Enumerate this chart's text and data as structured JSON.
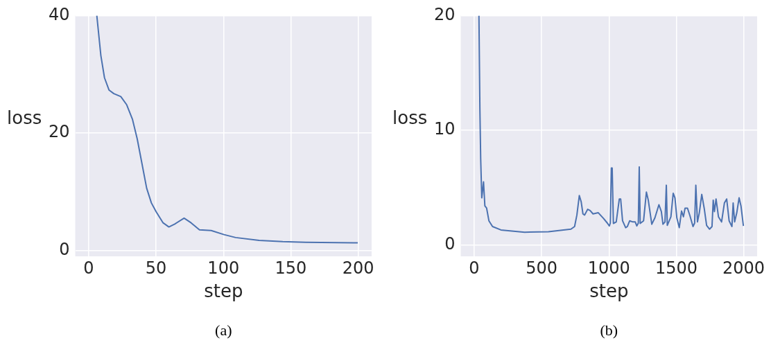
{
  "chart_data": [
    {
      "type": "line",
      "xlabel": "step",
      "ylabel": "loss",
      "color": "#4c72b0",
      "grid": true,
      "xlim": [
        -10,
        210
      ],
      "ylim": [
        -1,
        40
      ],
      "xticks": [
        0,
        50,
        100,
        150,
        200
      ],
      "yticks": [
        0,
        20,
        40
      ],
      "annotations": [
        "(a)"
      ],
      "x": [
        6,
        9,
        11.7,
        15.1,
        18.6,
        23.8,
        28.2,
        32.5,
        36,
        39.5,
        43,
        46.5,
        50,
        55.2,
        59.5,
        63.9,
        70.8,
        76,
        82.2,
        90.9,
        100.4,
        109,
        126.5,
        144,
        161,
        199.7
      ],
      "values": [
        40,
        33.2,
        29.4,
        27.3,
        26.7,
        26.2,
        24.8,
        22.3,
        19.0,
        14.8,
        10.6,
        8.1,
        6.6,
        4.7,
        4.0,
        4.5,
        5.5,
        4.7,
        3.5,
        3.4,
        2.7,
        2.2,
        1.7,
        1.5,
        1.4,
        1.3
      ]
    },
    {
      "type": "line",
      "xlabel": "step",
      "ylabel": "loss",
      "color": "#4c72b0",
      "grid": true,
      "xlim": [
        -100,
        2100
      ],
      "ylim": [
        -1,
        20
      ],
      "xticks": [
        0,
        500,
        1000,
        1500,
        2000
      ],
      "yticks": [
        0,
        10,
        20
      ],
      "annotations": [
        "(b)"
      ],
      "x": [
        35,
        42,
        48,
        56,
        69,
        79,
        92,
        109,
        136,
        198,
        374,
        551,
        718,
        745,
        762,
        780,
        794,
        807,
        819,
        842,
        860,
        882,
        921,
        960,
        988,
        1003,
        1010,
        1018,
        1024,
        1033,
        1054,
        1077,
        1087,
        1101,
        1124,
        1137,
        1154,
        1177,
        1195,
        1207,
        1218,
        1225,
        1232,
        1257,
        1278,
        1292,
        1318,
        1341,
        1371,
        1389,
        1401,
        1416,
        1426,
        1433,
        1460,
        1477,
        1490,
        1504,
        1522,
        1539,
        1553,
        1565,
        1583,
        1601,
        1624,
        1636,
        1645,
        1657,
        1671,
        1689,
        1707,
        1725,
        1747,
        1765,
        1774,
        1783,
        1795,
        1813,
        1836,
        1857,
        1874,
        1892,
        1913,
        1922,
        1933,
        1949,
        1966,
        1980,
        1998
      ],
      "values": [
        20,
        11.9,
        7.5,
        4.1,
        5.5,
        3.4,
        3.2,
        2.1,
        1.6,
        1.3,
        1.1,
        1.15,
        1.37,
        1.6,
        2.6,
        4.3,
        3.75,
        2.7,
        2.6,
        3.1,
        3.0,
        2.7,
        2.8,
        2.3,
        1.9,
        1.65,
        1.9,
        6.7,
        6.7,
        1.87,
        2.0,
        4.0,
        4.0,
        2.1,
        1.5,
        1.6,
        2.1,
        2.0,
        2.0,
        1.65,
        1.9,
        6.8,
        1.87,
        2.1,
        4.6,
        3.9,
        1.8,
        2.35,
        3.5,
        2.9,
        1.8,
        2.0,
        5.2,
        1.7,
        2.45,
        4.5,
        4.1,
        2.35,
        1.5,
        2.95,
        2.45,
        3.2,
        3.2,
        2.55,
        1.6,
        1.9,
        5.2,
        2.0,
        2.8,
        4.4,
        3.2,
        1.7,
        1.37,
        1.6,
        3.9,
        2.9,
        4.0,
        2.45,
        2.0,
        3.65,
        4.0,
        2.1,
        1.6,
        3.65,
        2.0,
        2.8,
        4.1,
        3.4,
        1.65
      ]
    }
  ]
}
